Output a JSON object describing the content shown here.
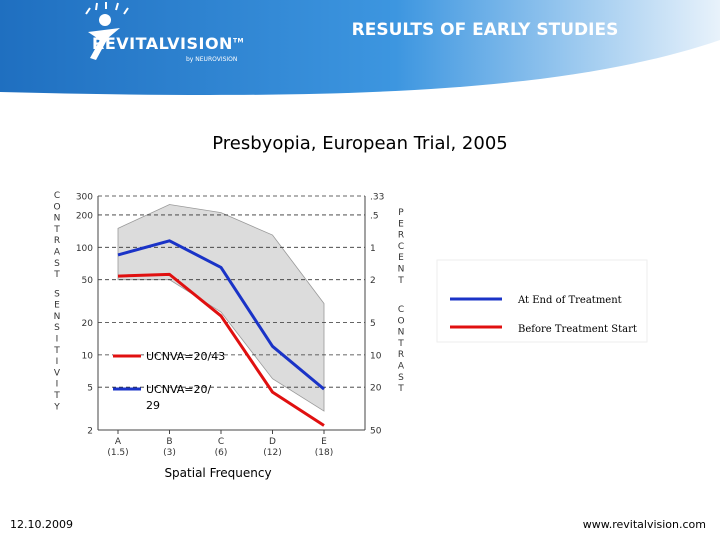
{
  "slide": {
    "title": "RESULTS OF EARLY STUDIES",
    "subtitle": "Presbyopia, European Trial, 2005",
    "brand": "REVITALVISION",
    "brand_tm": "TM",
    "brand_sub": "by NEUROVISION",
    "date": "12.10.2009",
    "url": "www.revitalvision.com"
  },
  "colors": {
    "header": "#2e86d4",
    "end_of_treatment": "#1a33c7",
    "before_treatment": "#e01010",
    "norm_band": "#dcdcdc"
  },
  "chart_data": {
    "type": "line",
    "xlabel": "Spatial Frequency",
    "left_axis_label": "CONTRAST SENSITIVITY",
    "right_axis_label_top": "PERCENT",
    "right_axis_label_bottom": "CONTRAST",
    "categories": [
      "A",
      "B",
      "C",
      "D",
      "E"
    ],
    "category_values": [
      "(1.5)",
      "(3)",
      "(6)",
      "(12)",
      "(18)"
    ],
    "y_ticks_left": [
      "300",
      "200",
      "100",
      "50",
      "20",
      "10",
      "5",
      "2"
    ],
    "y_ticks_right": [
      ".33",
      ".5",
      "1",
      "2",
      "5",
      "10",
      "20",
      "50"
    ],
    "ylim": [
      2,
      300
    ],
    "y_scale": "log",
    "normal_range": {
      "upper": [
        150,
        250,
        210,
        130,
        30
      ],
      "lower": [
        50,
        50,
        25,
        6,
        3
      ]
    },
    "series": [
      {
        "name": "At End of Treatment",
        "values": [
          85,
          115,
          65,
          12,
          4.8
        ]
      },
      {
        "name": "Before Treatment Start",
        "values": [
          54,
          56,
          23,
          4.5,
          2.2
        ]
      }
    ],
    "annotations": [
      "UCNVA=20/43",
      "UCNVA=20/ 29"
    ],
    "legend_position": "right"
  }
}
